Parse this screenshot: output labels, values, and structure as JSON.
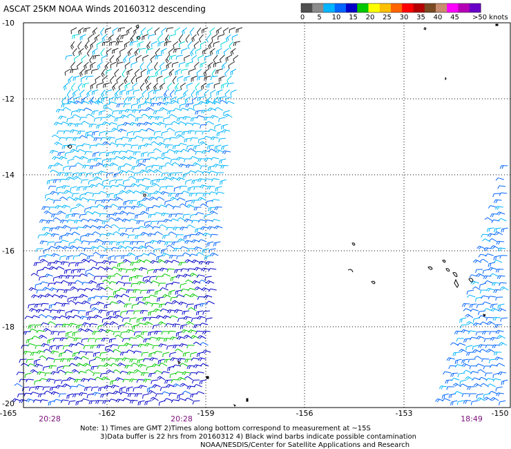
{
  "title": "ASCAT 25KM NOAA Winds 20160312 descending",
  "scale": {
    "colors": [
      "#505050",
      "#8c8c8c",
      "#00b4ff",
      "#0064ff",
      "#0000c8",
      "#00c800",
      "#ffff00",
      "#ffc000",
      "#ff6400",
      "#ff0000",
      "#b40000",
      "#7a4a24",
      "#c88c6e",
      "#ff00ff",
      "#b400b4",
      "#6a00c8"
    ],
    "labels": [
      "0",
      "5",
      "10",
      "15",
      "20",
      "25",
      "30",
      "35",
      "40",
      "45",
      ">50 knots"
    ]
  },
  "axes": {
    "lat_labels": [
      "-10",
      "-12",
      "-14",
      "-16",
      "-18",
      "-20"
    ],
    "lon_labels": [
      "-165",
      "-162",
      "-159",
      "-156",
      "-153",
      "-150"
    ]
  },
  "pass_times": [
    "20:28",
    "20:28",
    "18:49"
  ],
  "notes": {
    "line1": "Note: 1) Times are GMT 2)Times along bottom correspond to measurement at ~15S",
    "line2": "3)Data buffer is 22 hrs from 20160312 4) Black wind barbs indicate possible contamination",
    "credit": "NOAA/NESDIS/Center for Satellite Applications and Research"
  }
}
